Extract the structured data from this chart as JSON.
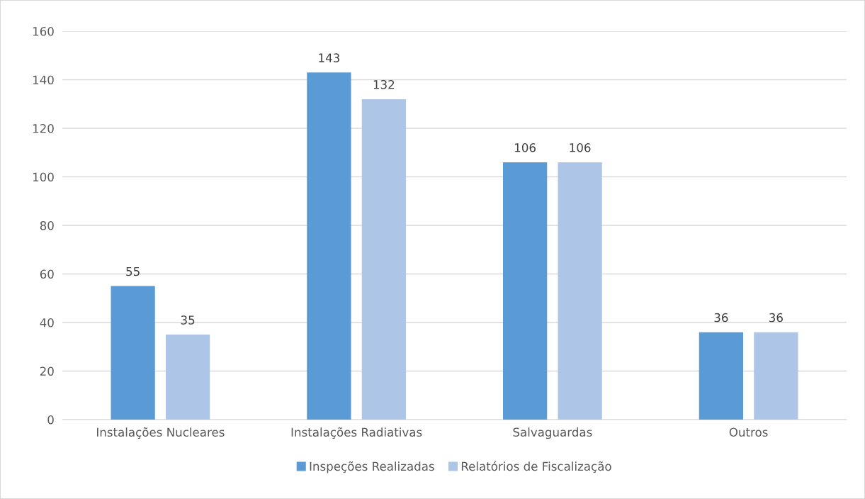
{
  "chart_data": {
    "type": "bar",
    "categories": [
      "Instalações Nucleares",
      "Instalações Radiativas",
      "Salvaguardas",
      "Outros"
    ],
    "series": [
      {
        "name": "Inspeções Realizadas",
        "color": "#5b9bd5",
        "values": [
          55,
          143,
          106,
          36
        ]
      },
      {
        "name": "Relatórios de Fiscalização",
        "color": "#adc6e8",
        "values": [
          35,
          132,
          106,
          36
        ]
      }
    ],
    "ylim": [
      0,
      160
    ],
    "yticks": [
      0,
      20,
      40,
      60,
      80,
      100,
      120,
      140,
      160
    ],
    "grid": "y",
    "legend": "bottom",
    "data_labels": true
  }
}
